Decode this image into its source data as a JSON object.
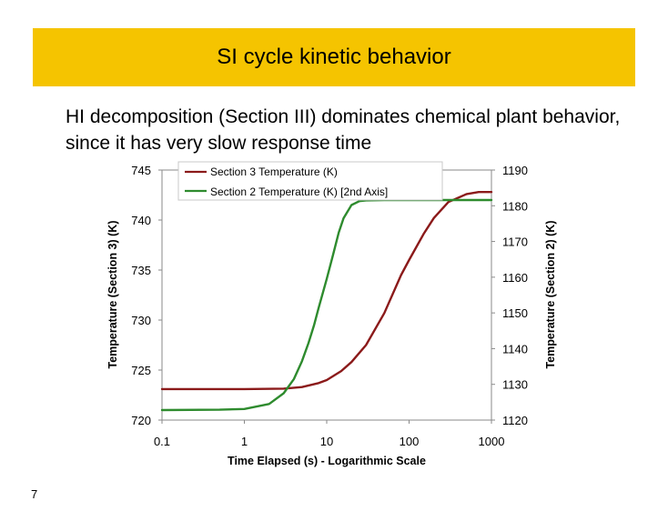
{
  "slide": {
    "title": "SI cycle kinetic behavior",
    "subtitle": "HI decomposition (Section III) dominates chemical plant behavior, since it has very slow response time",
    "page_number": "7",
    "accent_color": "#f5c400"
  },
  "chart_data": {
    "type": "line",
    "xlabel": "Time Elapsed (s) - Logarithmic Scale",
    "ylabel": "Temperature (Section 3) (K)",
    "y2label": "Temperature (Section 2) (K)",
    "x_scale": "log",
    "xlim": [
      0.1,
      1000
    ],
    "ylim": [
      720,
      745
    ],
    "y2lim": [
      1120,
      1190
    ],
    "x_ticks": [
      "0.1",
      "1",
      "10",
      "100",
      "1000"
    ],
    "y_ticks": [
      "720",
      "725",
      "730",
      "735",
      "740",
      "745"
    ],
    "y2_ticks": [
      "1120",
      "1130",
      "1140",
      "1150",
      "1160",
      "1170",
      "1180",
      "1190"
    ],
    "legend_position": "top-left",
    "grid": false,
    "series": [
      {
        "name": "Section 3 Temperature (K)",
        "axis": "left",
        "color": "#8b1a1a",
        "x": [
          0.1,
          1,
          3,
          5,
          8,
          10,
          15,
          20,
          30,
          50,
          80,
          100,
          150,
          200,
          300,
          500,
          700,
          1000
        ],
        "y": [
          723.1,
          723.1,
          723.15,
          723.3,
          723.7,
          724.0,
          724.9,
          725.8,
          727.5,
          730.7,
          734.5,
          736.0,
          738.6,
          740.2,
          741.8,
          742.6,
          742.8,
          742.8
        ]
      },
      {
        "name": "Section 2 Temperature (K) [2nd Axis]",
        "axis": "right",
        "color": "#2e8b2e",
        "x": [
          0.1,
          0.5,
          1,
          2,
          3,
          4,
          5,
          6,
          7,
          8,
          10,
          12,
          14,
          16,
          20,
          25,
          30,
          50,
          100,
          1000
        ],
        "y": [
          1122.8,
          1122.9,
          1123.1,
          1124.5,
          1127.5,
          1131.5,
          1136.5,
          1141.5,
          1146.5,
          1151.5,
          1159.5,
          1166.5,
          1172.5,
          1176.5,
          1180.2,
          1181.3,
          1181.5,
          1181.6,
          1181.6,
          1181.6
        ]
      }
    ]
  }
}
